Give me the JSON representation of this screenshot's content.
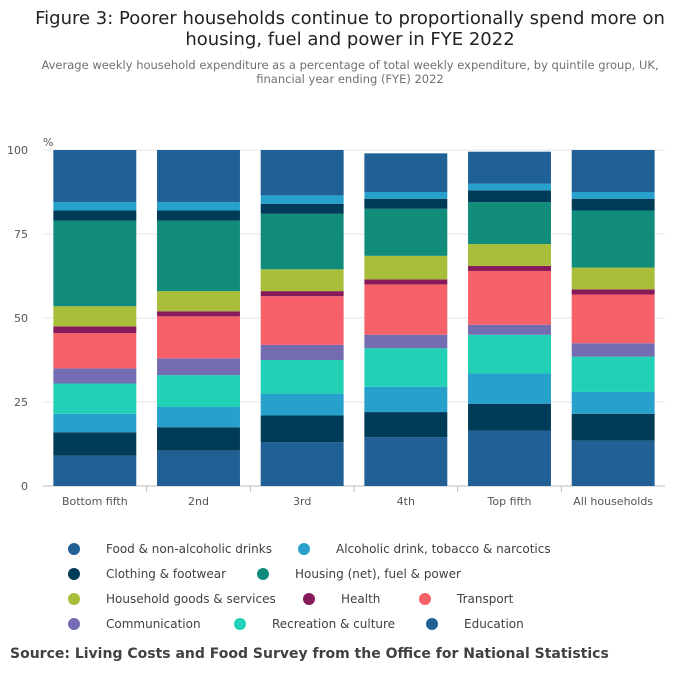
{
  "title_line1": "Figure 3: Poorer households continue to proportionally spend more on",
  "title_line2": "housing, fuel and power in FYE 2022",
  "subtitle_line1": "Average weekly household expenditure as a percentage of total weekly expenditure, by quintile group, UK,",
  "subtitle_line2": "financial year ending (FYE) 2022",
  "source": "Source: Living Costs and Food Survey from the Office for National Statistics",
  "chart_data": {
    "type": "bar",
    "stacked": true,
    "ylabel": "%",
    "ylim": [
      0,
      100
    ],
    "yticks": [
      0,
      25,
      50,
      75,
      100
    ],
    "grid": true,
    "categories": [
      "Bottom fifth",
      "2nd",
      "3rd",
      "4th",
      "Top fifth",
      "All households"
    ],
    "series": [
      {
        "name": "Education",
        "color": "#206095",
        "values": [
          9,
          10.5,
          13,
          14.5,
          16.5,
          13.5
        ]
      },
      {
        "name": "Clothing & footwear",
        "color": "#003c57",
        "values": [
          7,
          7,
          8,
          7.5,
          8,
          8
        ]
      },
      {
        "name": "Alcoholic drink, tobacco & narcotics",
        "color": "#27a0cc",
        "values": [
          5.5,
          6,
          6.5,
          7.5,
          9,
          6.5
        ]
      },
      {
        "name": "Recreation & culture",
        "color": "#22d0b6",
        "values": [
          9,
          9.5,
          10,
          11.5,
          11.5,
          10.5
        ]
      },
      {
        "name": "Communication",
        "color": "#746cb1",
        "values": [
          4.5,
          5,
          4.5,
          4,
          3,
          4
        ]
      },
      {
        "name": "Transport",
        "color": "#f66068",
        "values": [
          10.5,
          12.5,
          14.5,
          15,
          16,
          14.5
        ]
      },
      {
        "name": "Health",
        "color": "#871a5b",
        "values": [
          2,
          1.5,
          1.5,
          1.5,
          1.5,
          1.5
        ]
      },
      {
        "name": "Household goods & services",
        "color": "#a8bd3a",
        "values": [
          6,
          6,
          6.5,
          7,
          6.5,
          6.5
        ]
      },
      {
        "name": "Housing (net), fuel & power",
        "color": "#118c7b",
        "values": [
          25.5,
          21,
          16.5,
          14,
          12.5,
          17
        ]
      },
      {
        "name": "Clothing & footwear",
        "color": "#003c57",
        "values": [
          3,
          3,
          3,
          3,
          3.5,
          3.5
        ]
      },
      {
        "name": "Alcoholic drink, tobacco & narcotics",
        "color": "#27a0cc",
        "values": [
          2.5,
          2.5,
          2.5,
          2,
          2,
          2
        ]
      },
      {
        "name": "Food & non-alcoholic drinks",
        "color": "#206095",
        "values": [
          15.5,
          15.5,
          13.5,
          11.5,
          9.5,
          12.5
        ]
      }
    ],
    "legend": [
      {
        "name": "Food & non-alcoholic drinks",
        "color": "#206095"
      },
      {
        "name": "Alcoholic drink, tobacco & narcotics",
        "color": "#27a0cc"
      },
      {
        "name": "Clothing & footwear",
        "color": "#003c57"
      },
      {
        "name": "Housing (net), fuel & power",
        "color": "#118c7b"
      },
      {
        "name": "Household goods & services",
        "color": "#a8bd3a"
      },
      {
        "name": "Health",
        "color": "#871a5b"
      },
      {
        "name": "Transport",
        "color": "#f66068"
      },
      {
        "name": "Communication",
        "color": "#746cb1"
      },
      {
        "name": "Recreation & culture",
        "color": "#22d0b6"
      },
      {
        "name": "Education",
        "color": "#206095"
      }
    ],
    "legend_position": "bottom"
  }
}
